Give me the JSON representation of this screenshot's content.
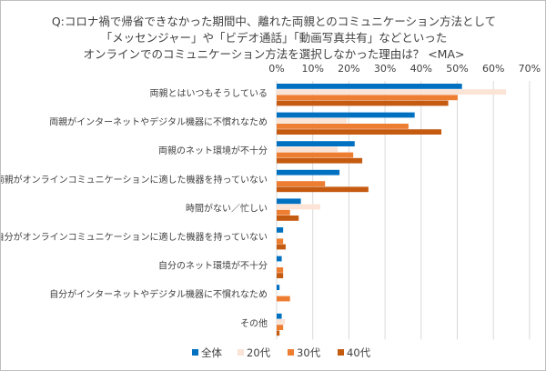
{
  "chart_data": {
    "type": "bar",
    "orientation": "horizontal",
    "title_lines": [
      "Q:コロナ禍で帰省できなかった期間中、離れた両親とのコミュニケーション方法として",
      "「メッセンジャー」や「ビデオ通話」「動画写真共有」などといった",
      "オンラインでのコミュニケーション方法を選択しなかった理由は？ <MA>"
    ],
    "categories": [
      "両親とはいつもそうしている",
      "両親がインターネットやデジタル機器に不慣れなため",
      "両親のネット環境が不十分",
      "両親がオンラインコミュニケーションに適した機器を持っていない",
      "時間がない／忙しい",
      "自分がオンラインコミュニケーションに適した機器を持っていない",
      "自分のネット環境が不十分",
      "自分がインターネットやデジタル機器に不慣れなため",
      "その他"
    ],
    "series": [
      {
        "name": "全体",
        "color": "#0070c0",
        "values": [
          51.3,
          38.2,
          21.6,
          17.4,
          6.7,
          1.8,
          1.4,
          0.8,
          1.4
        ]
      },
      {
        "name": "20代",
        "color": "#fbe3d6",
        "values": [
          63.5,
          19.5,
          16.9,
          0,
          12.1,
          0,
          0,
          0,
          2.3
        ]
      },
      {
        "name": "30代",
        "color": "#ed7d31",
        "values": [
          50.1,
          36.5,
          21.2,
          13.4,
          3.7,
          1.8,
          1.8,
          3.7,
          1.8
        ]
      },
      {
        "name": "40代",
        "color": "#c55a11",
        "values": [
          47.5,
          45.6,
          23.7,
          25.4,
          6.1,
          2.5,
          1.8,
          0,
          0.8
        ]
      }
    ],
    "xlim": [
      0,
      70
    ],
    "xticks": [
      "0%",
      "10%",
      "20%",
      "30%",
      "40%",
      "50%",
      "60%",
      "70%"
    ],
    "grid": true,
    "legend": "bottom"
  }
}
